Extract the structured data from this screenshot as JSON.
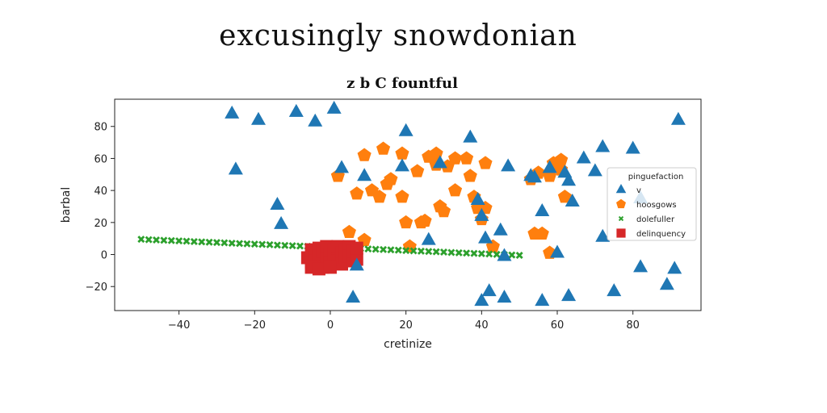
{
  "figure_title": "excusingly snowdonian",
  "chart_data": {
    "type": "scatter",
    "title": "z b C fountful",
    "xlabel": "cretinize",
    "ylabel": "barbal",
    "xlim": [
      -57,
      98
    ],
    "ylim": [
      -35,
      97
    ],
    "xticks": [
      -40,
      -20,
      0,
      20,
      40,
      60,
      80
    ],
    "yticks": [
      -20,
      0,
      20,
      40,
      60,
      80
    ],
    "tick_labels_x": [
      "−40",
      "−20",
      "0",
      "20",
      "40",
      "60",
      "80"
    ],
    "tick_labels_y": [
      "−20",
      "0",
      "20",
      "40",
      "60",
      "80"
    ],
    "grid": false,
    "legend": {
      "title": "pinguefaction",
      "position": "right"
    },
    "series": [
      {
        "name": "v",
        "marker": "triangle",
        "color": "#1f77b4",
        "points": [
          [
            -26,
            88
          ],
          [
            -25,
            53
          ],
          [
            -19,
            84
          ],
          [
            -9,
            89
          ],
          [
            -4,
            83
          ],
          [
            1,
            91
          ],
          [
            3,
            54
          ],
          [
            9,
            49
          ],
          [
            -14,
            31
          ],
          [
            -13,
            19
          ],
          [
            20,
            77
          ],
          [
            19,
            55
          ],
          [
            26,
            9
          ],
          [
            29,
            57
          ],
          [
            37,
            73
          ],
          [
            39,
            34
          ],
          [
            40,
            24
          ],
          [
            41,
            10
          ],
          [
            45,
            15
          ],
          [
            46,
            -1
          ],
          [
            47,
            55
          ],
          [
            53,
            49
          ],
          [
            54,
            48
          ],
          [
            56,
            27
          ],
          [
            58,
            54
          ],
          [
            60,
            1
          ],
          [
            62,
            51
          ],
          [
            63,
            46
          ],
          [
            64,
            33
          ],
          [
            67,
            60
          ],
          [
            70,
            52
          ],
          [
            72,
            67
          ],
          [
            72,
            11
          ],
          [
            80,
            66
          ],
          [
            82,
            -8
          ],
          [
            82,
            35
          ],
          [
            92,
            84
          ],
          [
            91,
            -9
          ],
          [
            89,
            -19
          ],
          [
            75,
            -23
          ],
          [
            63,
            -26
          ],
          [
            56,
            -29
          ],
          [
            46,
            -27
          ],
          [
            42,
            -23
          ],
          [
            40,
            -29
          ],
          [
            6,
            -27
          ],
          [
            7,
            -7
          ]
        ]
      },
      {
        "name": "hoosgows",
        "marker": "pentagon",
        "color": "#ff7f0e",
        "points": [
          [
            2,
            49
          ],
          [
            7,
            38
          ],
          [
            9,
            62
          ],
          [
            11,
            40
          ],
          [
            13,
            36
          ],
          [
            15,
            44
          ],
          [
            16,
            47
          ],
          [
            14,
            66
          ],
          [
            19,
            63
          ],
          [
            19,
            36
          ],
          [
            20,
            20
          ],
          [
            23,
            52
          ],
          [
            24,
            20
          ],
          [
            25,
            21
          ],
          [
            26,
            61
          ],
          [
            28,
            63
          ],
          [
            29,
            30
          ],
          [
            28,
            56
          ],
          [
            30,
            27
          ],
          [
            31,
            55
          ],
          [
            33,
            60
          ],
          [
            33,
            40
          ],
          [
            36,
            60
          ],
          [
            37,
            49
          ],
          [
            38,
            36
          ],
          [
            39,
            29
          ],
          [
            40,
            22
          ],
          [
            41,
            29
          ],
          [
            41,
            57
          ],
          [
            43,
            5
          ],
          [
            5,
            14
          ],
          [
            9,
            9
          ],
          [
            21,
            5
          ],
          [
            53,
            47
          ],
          [
            55,
            51
          ],
          [
            54,
            13
          ],
          [
            56,
            13
          ],
          [
            58,
            49
          ],
          [
            58,
            1
          ],
          [
            59,
            57
          ],
          [
            61,
            59
          ],
          [
            62,
            36
          ],
          [
            61,
            53
          ]
        ]
      },
      {
        "name": "dolefuller",
        "marker": "x",
        "color": "#2ca02c",
        "points": [
          [
            -50,
            9.5
          ],
          [
            -48,
            9.3
          ],
          [
            -46,
            9.1
          ],
          [
            -44,
            8.9
          ],
          [
            -42,
            8.7
          ],
          [
            -40,
            8.5
          ],
          [
            -38,
            8.3
          ],
          [
            -36,
            8.1
          ],
          [
            -34,
            7.9
          ],
          [
            -32,
            7.7
          ],
          [
            -30,
            7.5
          ],
          [
            -28,
            7.3
          ],
          [
            -26,
            7.1
          ],
          [
            -24,
            6.9
          ],
          [
            -22,
            6.7
          ],
          [
            -20,
            6.5
          ],
          [
            -18,
            6.3
          ],
          [
            -16,
            6.1
          ],
          [
            -14,
            5.9
          ],
          [
            -12,
            5.7
          ],
          [
            -10,
            5.5
          ],
          [
            -8,
            5.3
          ],
          [
            -6,
            5.1
          ],
          [
            -4,
            4.9
          ],
          [
            -2,
            4.7
          ],
          [
            0,
            4.5
          ],
          [
            2,
            4.3
          ],
          [
            4,
            4.1
          ],
          [
            6,
            3.9
          ],
          [
            8,
            3.7
          ],
          [
            10,
            3.5
          ],
          [
            12,
            3.3
          ],
          [
            14,
            3.1
          ],
          [
            16,
            2.9
          ],
          [
            18,
            2.7
          ],
          [
            20,
            2.5
          ],
          [
            22,
            2.3
          ],
          [
            24,
            2.1
          ],
          [
            26,
            1.9
          ],
          [
            28,
            1.7
          ],
          [
            30,
            1.5
          ],
          [
            32,
            1.3
          ],
          [
            34,
            1.1
          ],
          [
            36,
            0.9
          ],
          [
            38,
            0.7
          ],
          [
            40,
            0.5
          ],
          [
            42,
            0.3
          ],
          [
            44,
            0.1
          ],
          [
            46,
            -0.1
          ],
          [
            48,
            -0.3
          ],
          [
            50,
            -0.5
          ]
        ]
      },
      {
        "name": "delinquency",
        "marker": "square",
        "color": "#d62728",
        "points": [
          [
            -6,
            -2
          ],
          [
            -5,
            3
          ],
          [
            -5,
            -5
          ],
          [
            -4,
            1
          ],
          [
            -4,
            -4
          ],
          [
            -3,
            4
          ],
          [
            -3,
            -1
          ],
          [
            -2,
            -8
          ],
          [
            -2,
            2
          ],
          [
            -1,
            5
          ],
          [
            -1,
            -3
          ],
          [
            0,
            0
          ],
          [
            0,
            -5
          ],
          [
            1,
            3
          ],
          [
            1,
            -2
          ],
          [
            2,
            5
          ],
          [
            2,
            -4
          ],
          [
            3,
            1
          ],
          [
            3,
            -6
          ],
          [
            4,
            -2
          ],
          [
            4,
            3
          ],
          [
            5,
            5
          ],
          [
            5,
            -1
          ],
          [
            6,
            -4
          ],
          [
            6,
            2
          ],
          [
            7,
            -3
          ],
          [
            7,
            4
          ],
          [
            -5,
            -8
          ],
          [
            -3,
            -9
          ],
          [
            0,
            -8
          ]
        ]
      }
    ]
  }
}
